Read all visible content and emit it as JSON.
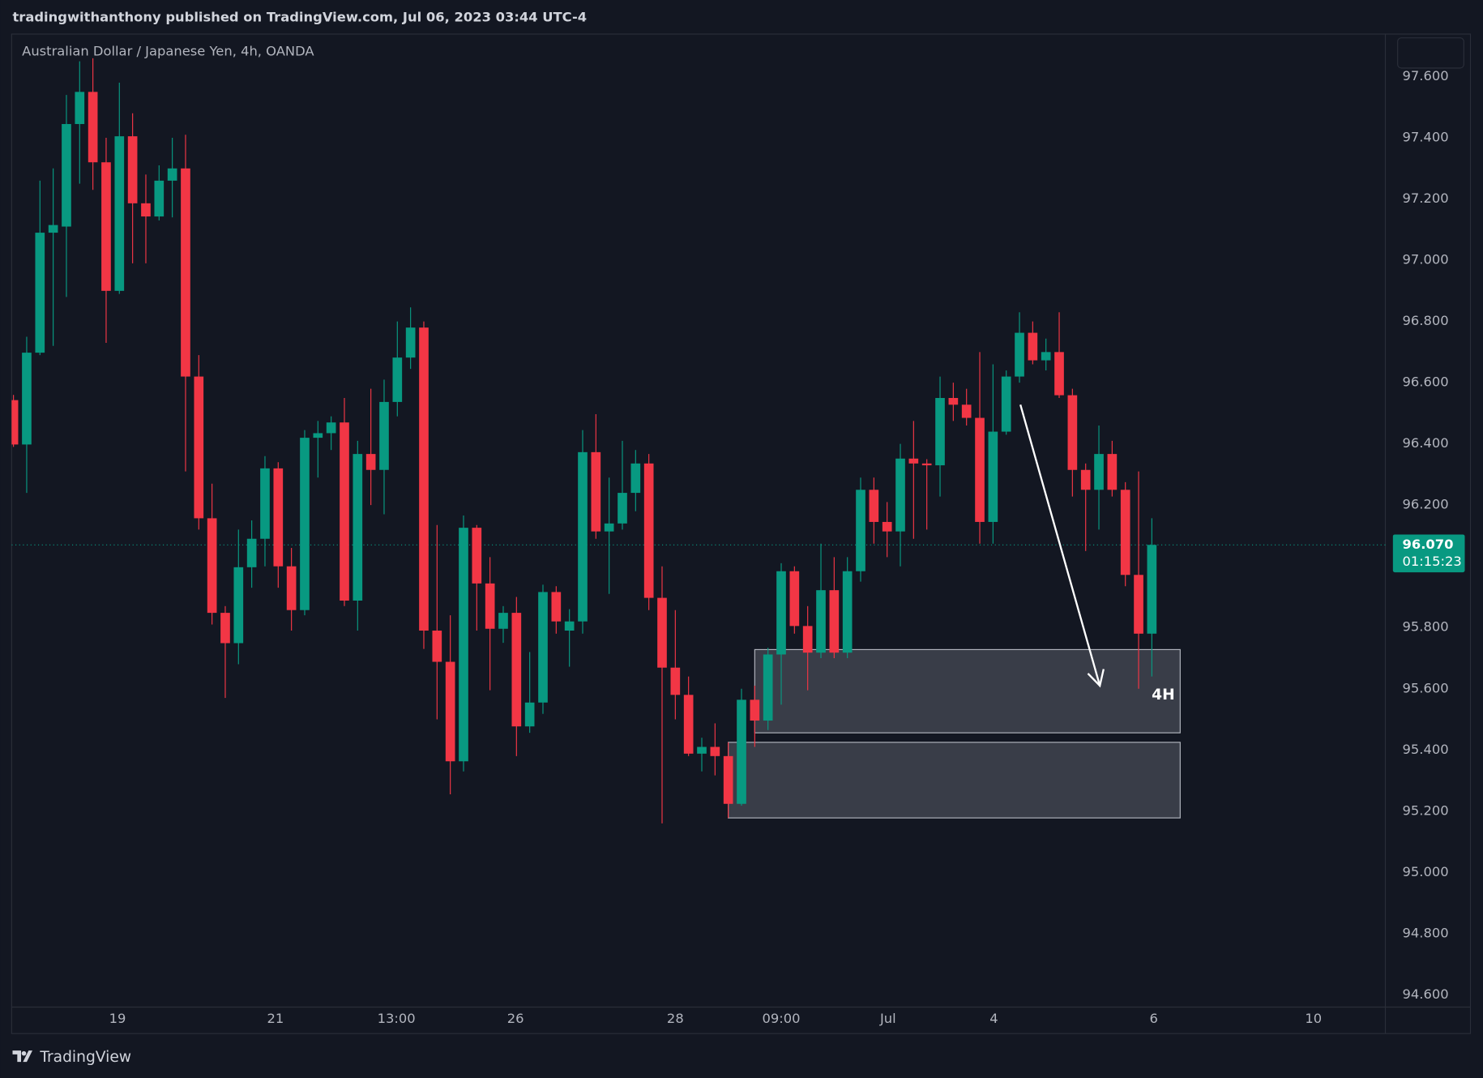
{
  "header": "tradingwithanthony published on TradingView.com, Jul 06, 2023 03:44 UTC-4",
  "footer": {
    "brand": "TradingView"
  },
  "chart_data": {
    "type": "candlestick",
    "title": "Australian Dollar / Japanese Yen, 4h, OANDA",
    "up_color": "#089981",
    "down_color": "#f23645",
    "open": [
      96.543,
      96.398,
      96.698,
      97.09,
      97.11,
      97.445,
      97.55,
      97.32,
      96.9,
      97.405,
      97.186,
      97.143,
      97.26,
      97.3,
      96.62,
      96.157,
      95.848,
      95.749,
      95.997,
      96.09,
      96.32,
      96.0,
      95.857,
      96.42,
      96.435,
      96.47,
      95.888,
      96.367,
      96.315,
      96.537,
      96.682,
      96.78,
      95.79,
      95.688,
      95.363,
      96.126,
      95.944,
      95.796,
      95.848,
      95.477,
      95.555,
      95.916,
      95.79,
      95.82,
      96.373,
      96.114,
      96.14,
      96.24,
      96.336,
      95.897,
      95.669,
      95.58,
      95.388,
      95.41,
      95.38,
      95.224,
      95.564,
      95.496,
      95.712,
      95.984,
      95.805,
      95.718,
      95.922,
      95.718,
      95.984,
      96.25,
      96.145,
      96.114,
      96.352,
      96.336,
      96.33,
      96.55,
      96.528,
      96.485,
      96.145,
      96.44,
      96.62,
      96.763,
      96.673,
      96.7,
      96.559,
      96.315,
      96.25,
      96.367,
      96.25,
      95.972,
      95.78
    ],
    "high": [
      96.56,
      96.75,
      97.26,
      97.3,
      97.54,
      97.65,
      97.66,
      97.4,
      97.58,
      97.48,
      97.28,
      97.31,
      97.4,
      97.41,
      96.69,
      96.27,
      95.87,
      96.12,
      96.15,
      96.36,
      96.34,
      96.06,
      96.445,
      96.475,
      96.49,
      96.55,
      96.41,
      96.58,
      96.61,
      96.8,
      96.846,
      96.8,
      96.135,
      95.84,
      96.166,
      96.135,
      96.03,
      95.87,
      95.9,
      95.72,
      95.94,
      95.935,
      95.86,
      96.445,
      96.497,
      96.29,
      96.41,
      96.38,
      96.367,
      96.0,
      95.857,
      95.64,
      95.44,
      95.487,
      95.425,
      95.6,
      95.61,
      95.734,
      96.01,
      96.0,
      95.87,
      96.074,
      96.03,
      96.03,
      96.29,
      96.29,
      96.21,
      96.4,
      96.475,
      96.35,
      96.62,
      96.6,
      96.58,
      96.7,
      96.66,
      96.64,
      96.83,
      96.8,
      96.744,
      96.83,
      96.58,
      96.336,
      96.46,
      96.41,
      96.275,
      96.31,
      96.157
    ],
    "low": [
      96.39,
      96.24,
      96.69,
      96.72,
      96.88,
      97.25,
      97.23,
      96.73,
      96.89,
      96.99,
      96.99,
      97.13,
      97.14,
      96.31,
      96.12,
      95.81,
      95.57,
      95.68,
      95.93,
      96.0,
      95.93,
      95.79,
      95.84,
      96.29,
      96.38,
      95.87,
      95.79,
      96.2,
      96.17,
      96.49,
      96.645,
      95.73,
      95.5,
      95.255,
      95.33,
      95.79,
      95.595,
      95.75,
      95.38,
      95.456,
      95.518,
      95.78,
      95.672,
      95.78,
      96.09,
      95.91,
      96.12,
      96.18,
      95.857,
      95.16,
      95.5,
      95.38,
      95.33,
      95.317,
      95.178,
      95.218,
      95.41,
      95.465,
      95.548,
      95.78,
      95.595,
      95.7,
      95.7,
      95.7,
      95.95,
      96.074,
      96.03,
      96.0,
      96.09,
      96.12,
      96.228,
      96.475,
      96.46,
      96.074,
      96.074,
      96.43,
      96.6,
      96.66,
      96.64,
      96.55,
      96.228,
      96.05,
      96.12,
      96.228,
      95.935,
      95.6,
      95.64
    ],
    "close": [
      96.398,
      96.698,
      97.09,
      97.115,
      97.445,
      97.55,
      97.32,
      96.9,
      97.405,
      97.186,
      97.143,
      97.26,
      97.3,
      96.62,
      96.157,
      95.848,
      95.749,
      95.997,
      96.09,
      96.32,
      96.0,
      95.857,
      96.42,
      96.435,
      96.47,
      95.888,
      96.367,
      96.315,
      96.537,
      96.682,
      96.78,
      95.79,
      95.688,
      95.363,
      96.126,
      95.944,
      95.796,
      95.848,
      95.477,
      95.555,
      95.916,
      95.82,
      95.82,
      96.373,
      96.114,
      96.14,
      96.24,
      96.336,
      95.897,
      95.669,
      95.58,
      95.388,
      95.41,
      95.38,
      95.224,
      95.564,
      95.496,
      95.712,
      95.984,
      95.805,
      95.718,
      95.922,
      95.718,
      95.984,
      96.25,
      96.145,
      96.114,
      96.352,
      96.336,
      96.33,
      96.55,
      96.528,
      96.485,
      96.145,
      96.44,
      96.62,
      96.763,
      96.673,
      96.7,
      96.559,
      96.315,
      96.25,
      96.367,
      96.25,
      95.972,
      95.78,
      96.07
    ],
    "xlim": [
      -0.14,
      103.64
    ],
    "xticks": [
      {
        "value": 7.86,
        "label": "19"
      },
      {
        "value": 19.79,
        "label": "21"
      },
      {
        "value": 28.93,
        "label": "13:00"
      },
      {
        "value": 37.93,
        "label": "26"
      },
      {
        "value": 50,
        "label": "28"
      },
      {
        "value": 58,
        "label": "09:00"
      },
      {
        "value": 66.07,
        "label": "Jul"
      },
      {
        "value": 74.07,
        "label": "4"
      },
      {
        "value": 86.14,
        "label": "6"
      },
      {
        "value": 98.21,
        "label": "10"
      }
    ],
    "ylim": [
      94.56,
      97.739
    ],
    "yticks": [
      {
        "value": 97.6,
        "label": "97.600"
      },
      {
        "value": 97.4,
        "label": "97.400"
      },
      {
        "value": 97.2,
        "label": "97.200"
      },
      {
        "value": 97.0,
        "label": "97.000"
      },
      {
        "value": 96.8,
        "label": "96.800"
      },
      {
        "value": 96.6,
        "label": "96.600"
      },
      {
        "value": 96.4,
        "label": "96.400"
      },
      {
        "value": 96.2,
        "label": "96.200"
      },
      {
        "value": 96.0,
        "label": "96.000"
      },
      {
        "value": 95.8,
        "label": "95.800"
      },
      {
        "value": 95.6,
        "label": "95.600"
      },
      {
        "value": 95.4,
        "label": "95.400"
      },
      {
        "value": 95.2,
        "label": "95.200"
      },
      {
        "value": 95.0,
        "label": "95.000"
      },
      {
        "value": 94.8,
        "label": "94.800"
      },
      {
        "value": 94.6,
        "label": "94.600"
      }
    ],
    "grid": false,
    "last_price": {
      "value": 96.07,
      "label": "96.070"
    },
    "countdown": "01:15:23",
    "zones": [
      {
        "x": [
          56,
          88.14
        ],
        "y": [
          95.456,
          95.728
        ]
      },
      {
        "x": [
          54,
          88.14
        ],
        "y": [
          95.178,
          95.425
        ]
      }
    ],
    "arrow": {
      "x": [
        76.07,
        82.07
      ],
      "y": [
        96.528,
        95.61
      ]
    },
    "annotation": {
      "text": "4H",
      "x": 86.86,
      "y": 95.58
    }
  }
}
